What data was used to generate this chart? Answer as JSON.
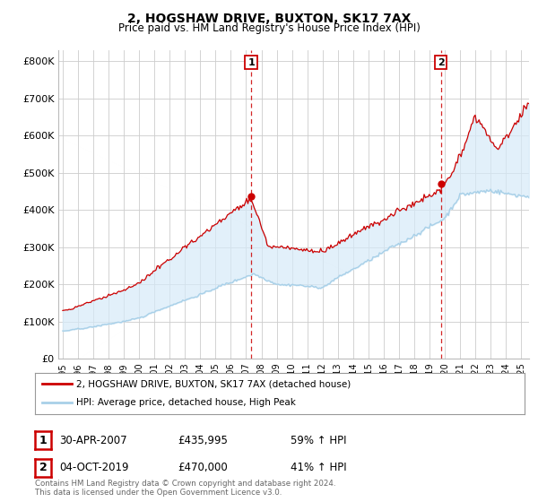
{
  "title": "2, HOGSHAW DRIVE, BUXTON, SK17 7AX",
  "subtitle": "Price paid vs. HM Land Registry's House Price Index (HPI)",
  "ylabel_ticks": [
    "£0",
    "£100K",
    "£200K",
    "£300K",
    "£400K",
    "£500K",
    "£600K",
    "£700K",
    "£800K"
  ],
  "ytick_values": [
    0,
    100000,
    200000,
    300000,
    400000,
    500000,
    600000,
    700000,
    800000
  ],
  "ylim": [
    0,
    830000
  ],
  "xlim_start": 1994.7,
  "xlim_end": 2025.5,
  "hpi_color": "#a8d0e8",
  "price_color": "#cc0000",
  "fill_color": "#d6eaf8",
  "vline_color": "#cc0000",
  "sale1_x": 2007.33,
  "sale1_y": 435995,
  "sale1_label": "1",
  "sale1_date": "30-APR-2007",
  "sale1_price": "£435,995",
  "sale1_hpi": "59% ↑ HPI",
  "sale2_x": 2019.75,
  "sale2_y": 470000,
  "sale2_label": "2",
  "sale2_date": "04-OCT-2019",
  "sale2_price": "£470,000",
  "sale2_hpi": "41% ↑ HPI",
  "legend_line1": "2, HOGSHAW DRIVE, BUXTON, SK17 7AX (detached house)",
  "legend_line2": "HPI: Average price, detached house, High Peak",
  "footer": "Contains HM Land Registry data © Crown copyright and database right 2024.\nThis data is licensed under the Open Government Licence v3.0.",
  "xtick_years": [
    "1995",
    "1996",
    "1997",
    "1998",
    "1999",
    "2000",
    "2001",
    "2002",
    "2003",
    "2004",
    "2005",
    "2006",
    "2007",
    "2008",
    "2009",
    "2010",
    "2011",
    "2012",
    "2013",
    "2014",
    "2015",
    "2016",
    "2017",
    "2018",
    "2019",
    "2020",
    "2021",
    "2022",
    "2023",
    "2024",
    "2025"
  ],
  "background_color": "#ffffff",
  "grid_color": "#cccccc"
}
